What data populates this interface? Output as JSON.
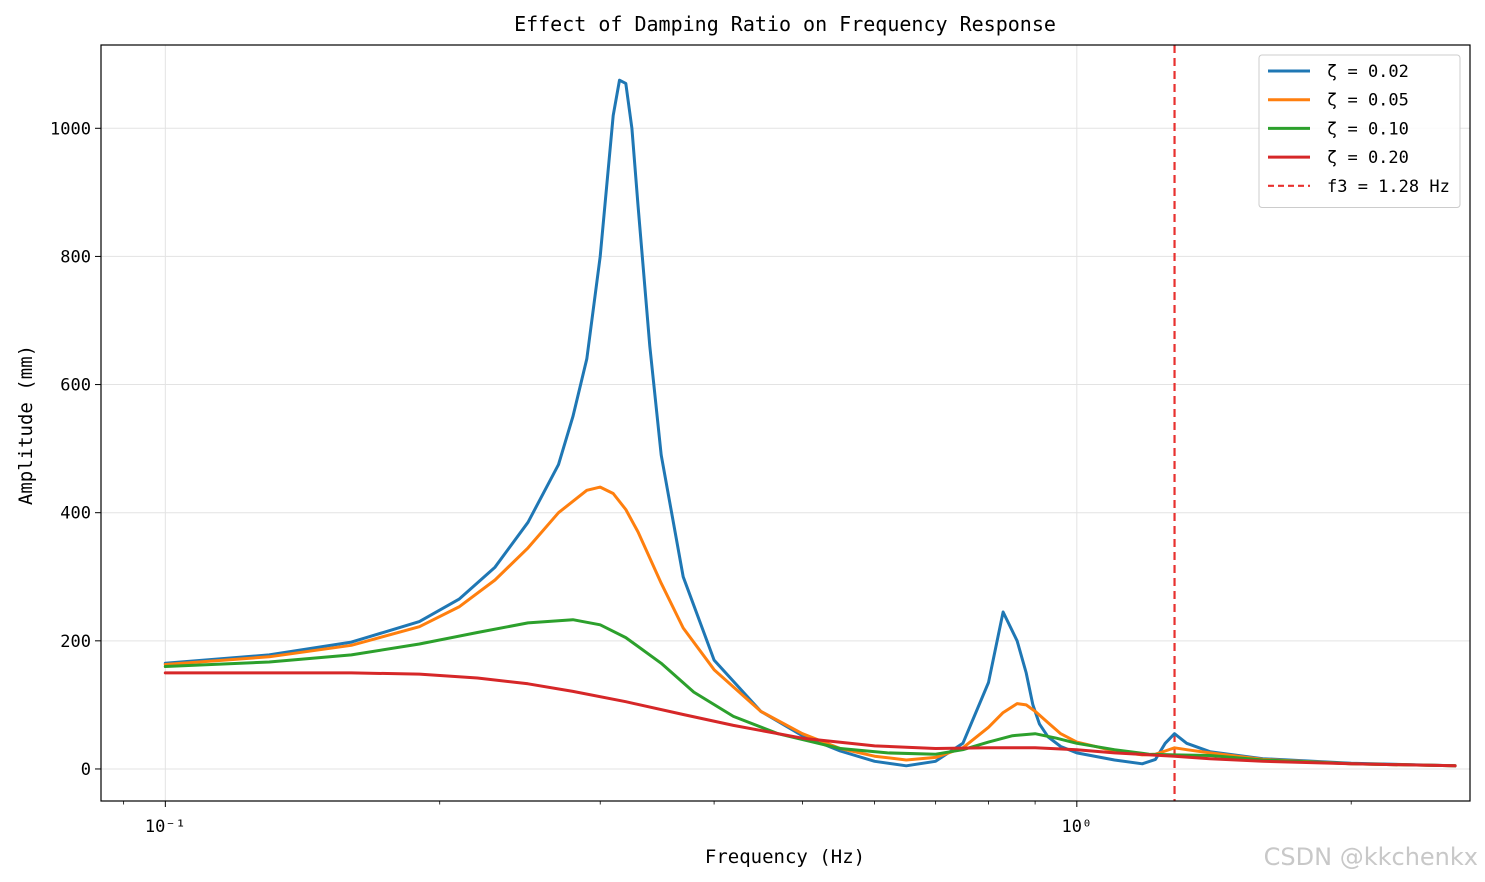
{
  "chart_data": {
    "type": "line",
    "title": "Effect of Damping Ratio on Frequency Response",
    "xlabel": "Frequency (Hz)",
    "ylabel": "Amplitude (mm)",
    "xscale": "log",
    "xlim": [
      0.085,
      2.7
    ],
    "ylim": [
      -50,
      1130
    ],
    "x_ticks": [
      {
        "value": 0.1,
        "label": "10⁻¹"
      },
      {
        "value": 1.0,
        "label": "10⁰"
      }
    ],
    "y_ticks": [
      {
        "value": 0,
        "label": "0"
      },
      {
        "value": 200,
        "label": "200"
      },
      {
        "value": 400,
        "label": "400"
      },
      {
        "value": 600,
        "label": "600"
      },
      {
        "value": 800,
        "label": "800"
      },
      {
        "value": 1000,
        "label": "1000"
      }
    ],
    "grid": true,
    "legend_position": "top-right",
    "series": [
      {
        "name": "ζ = 0.02",
        "color": "#1f77b4",
        "x": [
          0.1,
          0.13,
          0.16,
          0.19,
          0.21,
          0.23,
          0.25,
          0.27,
          0.28,
          0.29,
          0.3,
          0.31,
          0.315,
          0.32,
          0.325,
          0.33,
          0.34,
          0.35,
          0.37,
          0.4,
          0.45,
          0.5,
          0.55,
          0.6,
          0.65,
          0.7,
          0.75,
          0.8,
          0.83,
          0.86,
          0.88,
          0.895,
          0.91,
          0.93,
          0.96,
          1.0,
          1.1,
          1.18,
          1.22,
          1.25,
          1.28,
          1.32,
          1.4,
          1.6,
          2.0,
          2.6
        ],
        "y": [
          165,
          178,
          198,
          230,
          265,
          315,
          385,
          475,
          550,
          640,
          800,
          1020,
          1075,
          1070,
          1000,
          880,
          660,
          490,
          300,
          170,
          90,
          52,
          28,
          12,
          5,
          12,
          40,
          135,
          245,
          200,
          150,
          100,
          70,
          50,
          35,
          25,
          14,
          8,
          15,
          40,
          55,
          40,
          27,
          16,
          9,
          5
        ]
      },
      {
        "name": "ζ = 0.05",
        "color": "#ff7f0e",
        "x": [
          0.1,
          0.13,
          0.16,
          0.19,
          0.21,
          0.23,
          0.25,
          0.27,
          0.29,
          0.3,
          0.31,
          0.32,
          0.33,
          0.35,
          0.37,
          0.4,
          0.45,
          0.5,
          0.55,
          0.6,
          0.65,
          0.7,
          0.75,
          0.8,
          0.83,
          0.86,
          0.88,
          0.9,
          0.93,
          0.96,
          1.0,
          1.1,
          1.18,
          1.22,
          1.25,
          1.28,
          1.32,
          1.4,
          1.6,
          2.0,
          2.6
        ],
        "y": [
          163,
          175,
          193,
          222,
          253,
          295,
          345,
          400,
          435,
          440,
          430,
          405,
          370,
          290,
          220,
          155,
          90,
          55,
          32,
          20,
          14,
          18,
          33,
          65,
          88,
          102,
          100,
          90,
          72,
          55,
          42,
          28,
          22,
          23,
          28,
          33,
          30,
          25,
          15,
          8,
          5
        ]
      },
      {
        "name": "ζ = 0.10",
        "color": "#2ca02c",
        "x": [
          0.1,
          0.13,
          0.16,
          0.19,
          0.22,
          0.25,
          0.28,
          0.3,
          0.32,
          0.35,
          0.38,
          0.42,
          0.47,
          0.55,
          0.62,
          0.7,
          0.75,
          0.8,
          0.85,
          0.9,
          0.95,
          1.0,
          1.1,
          1.2,
          1.28,
          1.4,
          1.6,
          2.0,
          2.6
        ],
        "y": [
          160,
          167,
          178,
          195,
          213,
          228,
          233,
          225,
          205,
          165,
          120,
          82,
          55,
          32,
          25,
          23,
          30,
          42,
          52,
          55,
          48,
          40,
          30,
          23,
          22,
          21,
          14,
          8,
          5
        ]
      },
      {
        "name": "ζ = 0.20",
        "color": "#d62728",
        "x": [
          0.1,
          0.13,
          0.16,
          0.19,
          0.22,
          0.25,
          0.28,
          0.32,
          0.37,
          0.42,
          0.5,
          0.6,
          0.7,
          0.8,
          0.9,
          1.0,
          1.1,
          1.28,
          1.4,
          1.6,
          2.0,
          2.6
        ],
        "y": [
          150,
          150,
          150,
          148,
          142,
          133,
          121,
          105,
          85,
          68,
          48,
          36,
          32,
          33,
          33,
          30,
          25,
          20,
          16,
          12,
          8,
          5
        ]
      }
    ],
    "vlines": [
      {
        "name": "f3 = 1.28 Hz",
        "x": 1.28,
        "color": "#e8312f",
        "style": "dashed"
      }
    ]
  },
  "watermark": "CSDN @kkchenkx"
}
